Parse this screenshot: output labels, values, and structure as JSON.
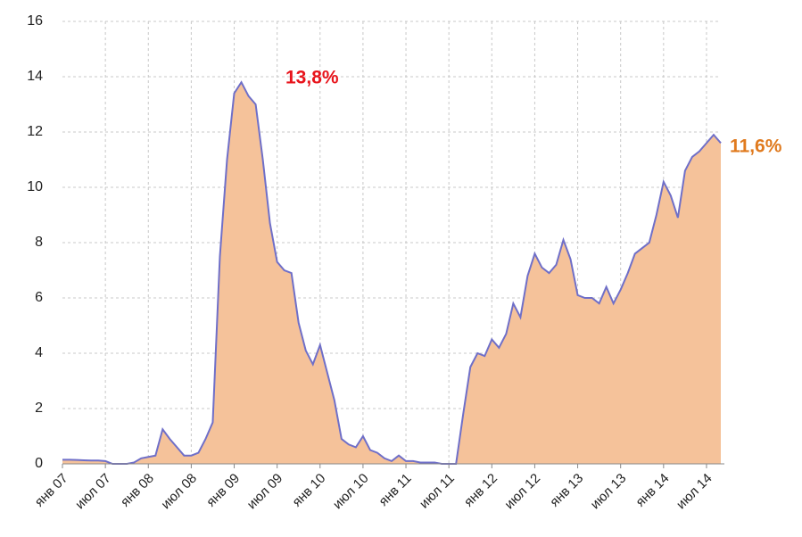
{
  "chart_data": {
    "type": "area",
    "categories": [
      "янв 07",
      null,
      null,
      null,
      null,
      null,
      "июл 07",
      null,
      null,
      null,
      null,
      null,
      "янв 08",
      null,
      null,
      null,
      null,
      null,
      "июл 08",
      null,
      null,
      null,
      null,
      null,
      "янв 09",
      null,
      null,
      null,
      null,
      null,
      "июл 09",
      null,
      null,
      null,
      null,
      null,
      "янв 10",
      null,
      null,
      null,
      null,
      null,
      "июл 10",
      null,
      null,
      null,
      null,
      null,
      "янв 11",
      null,
      null,
      null,
      null,
      null,
      "июл 11",
      null,
      null,
      null,
      null,
      null,
      "янв 12",
      null,
      null,
      null,
      null,
      null,
      "июл 12",
      null,
      null,
      null,
      null,
      null,
      "янв 13",
      null,
      null,
      null,
      null,
      null,
      "июл 13",
      null,
      null,
      null,
      null,
      null,
      "янв 14",
      null,
      null,
      null,
      null,
      null,
      "июл 14",
      null,
      null
    ],
    "series": [
      {
        "color": "#f5c29a",
        "line_color": "#6f6fc8",
        "values": [
          0.15,
          0.15,
          0.14,
          0.13,
          0.12,
          0.12,
          0.1,
          0,
          0,
          0,
          0.05,
          0.2,
          0.25,
          0.3,
          1.25,
          0.9,
          0.6,
          0.3,
          0.3,
          0.4,
          0.9,
          1.5,
          7.5,
          11,
          13.4,
          13.8,
          13.3,
          13.0,
          11,
          8.7,
          7.3,
          7.0,
          6.9,
          5.1,
          4.1,
          3.6,
          4.3,
          3.3,
          2.3,
          0.9,
          0.7,
          0.6,
          1.0,
          0.5,
          0.4,
          0.2,
          0.1,
          0.3,
          0.1,
          0.1,
          0.05,
          0.05,
          0.05,
          0,
          0,
          0,
          1.8,
          3.5,
          4.0,
          3.9,
          4.5,
          4.2,
          4.7,
          5.8,
          5.3,
          6.8,
          7.6,
          7.1,
          6.9,
          7.2,
          8.1,
          7.4,
          6.1,
          6.0,
          6.0,
          5.8,
          6.4,
          5.8,
          6.3,
          6.9,
          7.6,
          7.8,
          8.0,
          9.0,
          10.2,
          9.7,
          8.9,
          10.6,
          11.1,
          11.3,
          11.6,
          11.9,
          11.6
        ]
      }
    ],
    "ylim": [
      0,
      16
    ],
    "yticks": [
      0,
      2,
      4,
      6,
      8,
      10,
      12,
      14,
      16
    ],
    "grid": true,
    "annotations": [
      {
        "text": "13,8%",
        "color": "#e8141c"
      },
      {
        "text": "11,6%",
        "color": "#e07a1e"
      }
    ]
  }
}
